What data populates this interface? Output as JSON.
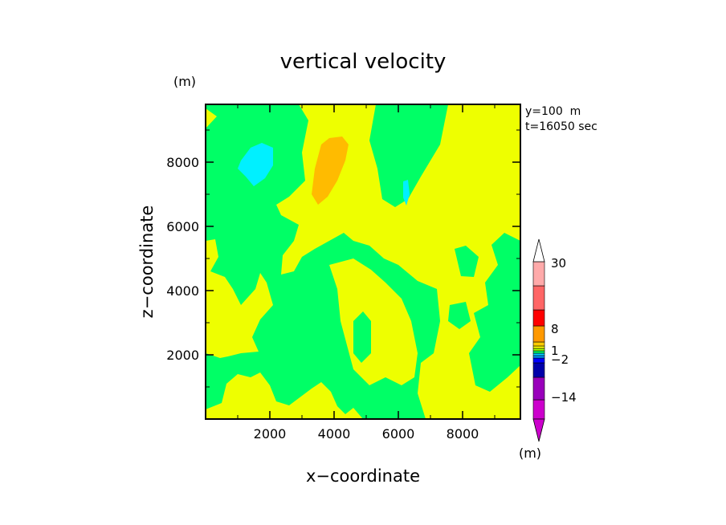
{
  "chart_data": {
    "type": "heatmap",
    "title": "vertical velocity",
    "xlabel": "x−coordinate",
    "ylabel": "z−coordinate",
    "y_unit": "(m)",
    "colorbar_unit": "(m)",
    "info_lines": [
      "y=100  m",
      "t=16050 sec"
    ],
    "xlim": [
      0,
      9800
    ],
    "ylim": [
      0,
      9800
    ],
    "x_ticks": [
      2000,
      4000,
      6000,
      8000
    ],
    "y_ticks": [
      2000,
      4000,
      6000,
      8000
    ],
    "x_tick_labels": [
      "2000",
      "4000",
      "6000",
      "8000"
    ],
    "y_tick_labels": [
      "2000",
      "4000",
      "6000",
      "8000"
    ],
    "colorbar": {
      "colors": [
        "#cc00cc",
        "#9900bb",
        "#0000aa",
        "#0000ff",
        "#0099ff",
        "#00ccff",
        "#00ff66",
        "#aaff00",
        "#ffff00",
        "#ffcc00",
        "#ff9900",
        "#ff0000",
        "#ff6666",
        "#ffaaaa",
        "#ffffff"
      ],
      "tick_labels": [
        "30",
        "8",
        "1",
        "−2",
        "−14"
      ]
    },
    "field_colors": {
      "green": "#00ff66",
      "yellow": "#eeff00",
      "orange": "#ffbb00",
      "cyan": "#00f0ff"
    }
  }
}
